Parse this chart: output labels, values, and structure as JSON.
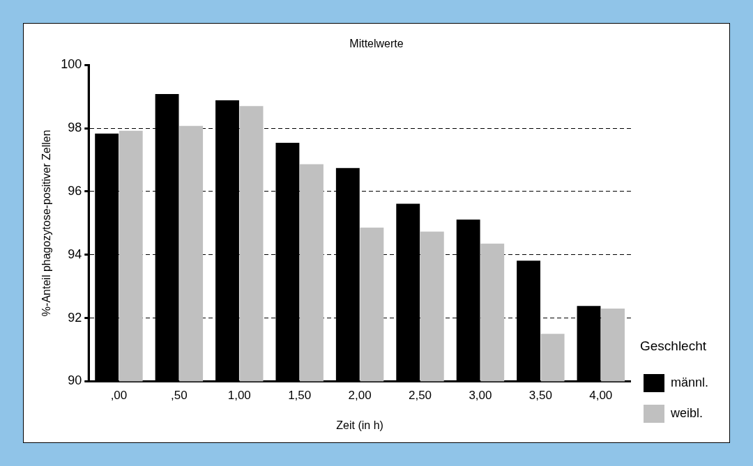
{
  "chart_data": {
    "type": "bar",
    "title": "Mittelwerte",
    "xlabel": "Zeit (in h)",
    "ylabel": "%-Anteil phagozytose-positiver Zellen",
    "legend_title": "Geschlecht",
    "categories": [
      ",00",
      ",50",
      "1,00",
      "1,50",
      "2,00",
      "2,50",
      "3,00",
      "3,50",
      "4,00"
    ],
    "series": [
      {
        "name": "männl.",
        "color": "#000000",
        "values": [
          97.83,
          99.08,
          98.88,
          97.54,
          96.74,
          95.61,
          95.11,
          93.81,
          92.38
        ]
      },
      {
        "name": "weibl.",
        "color": "#c0c0c0",
        "values": [
          97.92,
          98.07,
          98.7,
          96.86,
          94.86,
          94.73,
          94.35,
          91.5,
          92.3
        ]
      }
    ],
    "ylim": [
      90,
      100
    ],
    "yticks": [
      90,
      92,
      94,
      96,
      98,
      100
    ],
    "grid": "y",
    "legend": "bottom right"
  }
}
